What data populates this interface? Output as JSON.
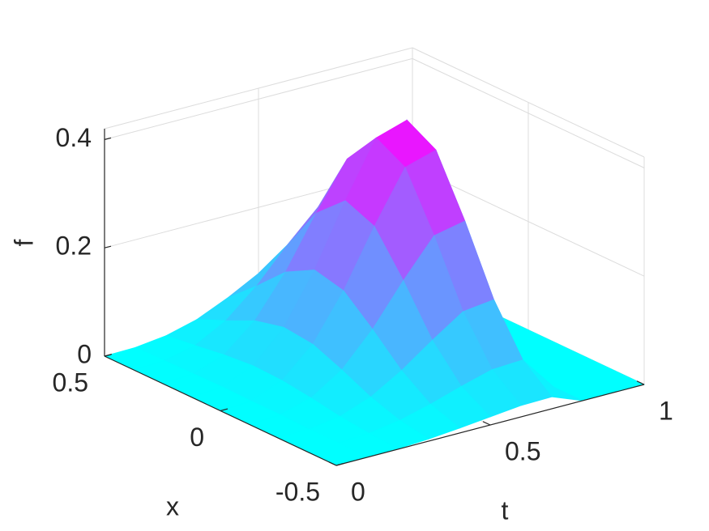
{
  "chart_data": {
    "type": "surface",
    "tlabel": "t",
    "xlabel": "x",
    "zlabel": "f",
    "t": [
      0,
      0.1,
      0.2,
      0.3,
      0.4,
      0.5,
      0.6,
      0.7,
      0.8,
      0.9,
      1
    ],
    "x": [
      -0.5,
      -0.375,
      -0.25,
      -0.125,
      0,
      0.125,
      0.25,
      0.375,
      0.5
    ],
    "z": [
      [
        0,
        0,
        0,
        0,
        0,
        0,
        0,
        0,
        0
      ],
      [
        0.0,
        0.001,
        0.001,
        0.003,
        0.003,
        0.004,
        0.003,
        0.002,
        0.001
      ],
      [
        0.001,
        0.004,
        0.01,
        0.019,
        0.026,
        0.028,
        0.023,
        0.015,
        0.008
      ],
      [
        0.004,
        0.013,
        0.031,
        0.056,
        0.078,
        0.084,
        0.071,
        0.046,
        0.023
      ],
      [
        0.009,
        0.028,
        0.065,
        0.116,
        0.162,
        0.175,
        0.146,
        0.095,
        0.048
      ],
      [
        0.015,
        0.046,
        0.106,
        0.191,
        0.266,
        0.288,
        0.24,
        0.156,
        0.078
      ],
      [
        0.021,
        0.062,
        0.144,
        0.259,
        0.36,
        0.389,
        0.325,
        0.211,
        0.106
      ],
      [
        0.022,
        0.065,
        0.151,
        0.271,
        0.377,
        0.407,
        0.34,
        0.221,
        0.111
      ],
      [
        0,
        0,
        0,
        0,
        0,
        0,
        0,
        0,
        0
      ],
      [
        0,
        0,
        0,
        0,
        0,
        0,
        0,
        0,
        0
      ],
      [
        0,
        0,
        0,
        0,
        0,
        0,
        0,
        0,
        0
      ]
    ],
    "tlim": [
      0,
      1
    ],
    "xlim": [
      -0.5,
      0.5
    ],
    "zlim": [
      0,
      0.42
    ],
    "tticks": [
      0,
      0.5,
      1
    ],
    "xticks": [
      -0.5,
      0,
      0.5
    ],
    "zticks": [
      0,
      0.2,
      0.4
    ],
    "grid": true,
    "colormap": [
      "#00ffff",
      "#ff00ff"
    ]
  }
}
